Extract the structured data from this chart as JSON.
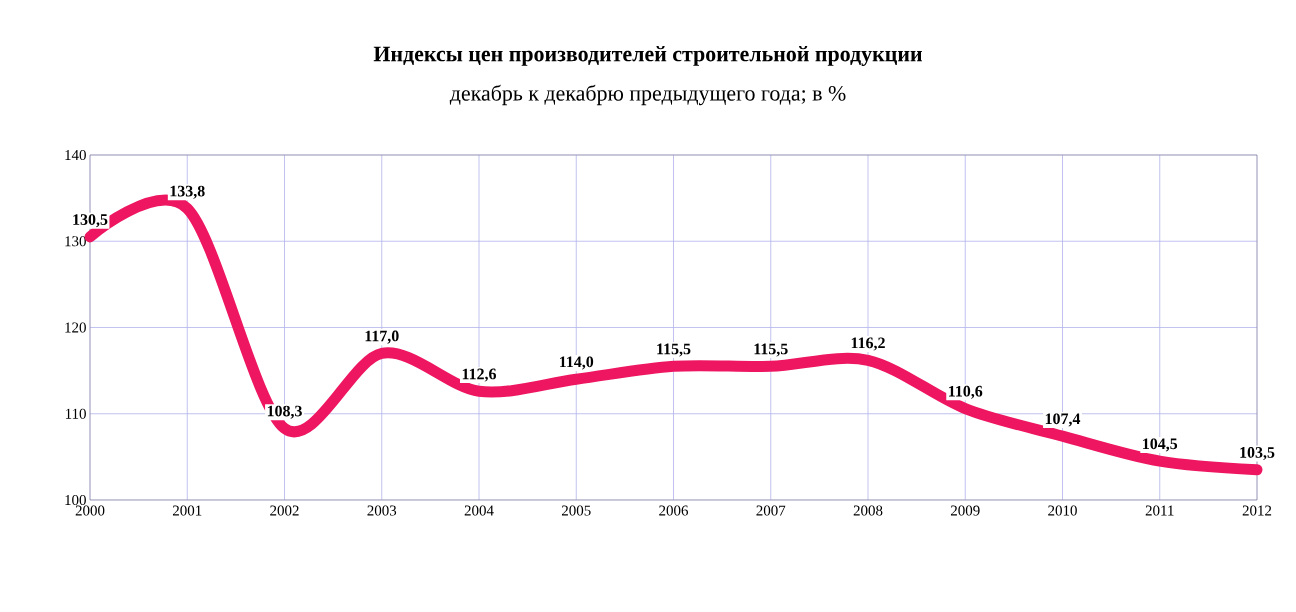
{
  "chart_data": {
    "type": "line",
    "title": "Индексы цен производителей строительной продукции",
    "subtitle": "декабрь к декабрю предыдущего года; в %",
    "x": [
      2000,
      2001,
      2002,
      2003,
      2004,
      2005,
      2006,
      2007,
      2008,
      2009,
      2010,
      2011,
      2012
    ],
    "values": [
      130.5,
      133.8,
      108.3,
      117.0,
      112.6,
      114.0,
      115.5,
      115.5,
      116.2,
      110.6,
      107.4,
      104.5,
      103.5
    ],
    "value_labels": [
      "130,5",
      "133,8",
      "108,3",
      "117,0",
      "112,6",
      "114,0",
      "115,5",
      "115,5",
      "116,2",
      "110,6",
      "107,4",
      "104,5",
      "103,5"
    ],
    "color": "#ee1660",
    "marker": "none",
    "grid": true,
    "xlim": [
      2000,
      2012
    ],
    "xticks": [
      2000,
      2001,
      2002,
      2003,
      2004,
      2005,
      2006,
      2007,
      2008,
      2009,
      2010,
      2011,
      2012
    ],
    "ylim": [
      100,
      140
    ],
    "yticks": [
      100,
      110,
      120,
      130,
      140
    ]
  }
}
